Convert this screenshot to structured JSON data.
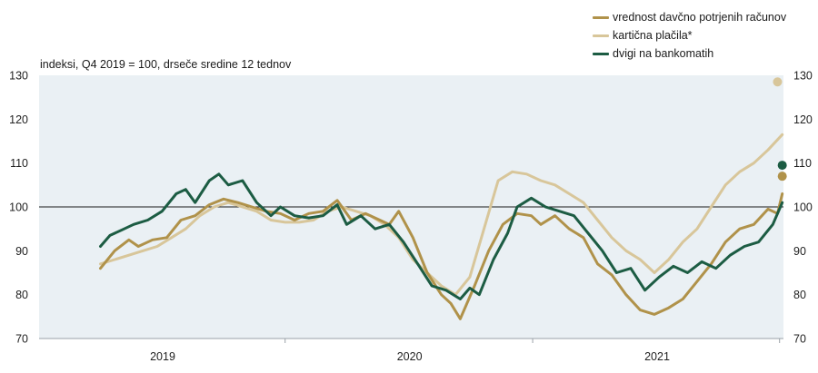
{
  "chart_data": {
    "type": "line",
    "subtitle": "indeksi, Q4 2019 = 100, drseče sredine 12 tednov",
    "x_axis": {
      "tick_labels": [
        "2019",
        "2020",
        "2021"
      ],
      "range": [
        "2018-07",
        "2021-07"
      ]
    },
    "y_axis": {
      "min": 70,
      "max": 130,
      "ticks": [
        70,
        80,
        90,
        100,
        110,
        120,
        130
      ],
      "grid": false,
      "reference_line": 100
    },
    "legend_position": "top-right",
    "series": [
      {
        "name": "vrednost davčno potrjenih računov",
        "color": "#b0924a",
        "values": [
          {
            "x": "2018-10-01",
            "y": 86
          },
          {
            "x": "2018-10-22",
            "y": 90
          },
          {
            "x": "2018-11-12",
            "y": 92.5
          },
          {
            "x": "2018-11-26",
            "y": 91
          },
          {
            "x": "2018-12-17",
            "y": 92.5
          },
          {
            "x": "2019-01-07",
            "y": 93
          },
          {
            "x": "2019-01-28",
            "y": 97
          },
          {
            "x": "2019-02-18",
            "y": 98
          },
          {
            "x": "2019-03-11",
            "y": 100.5
          },
          {
            "x": "2019-04-01",
            "y": 101.8
          },
          {
            "x": "2019-04-22",
            "y": 101
          },
          {
            "x": "2019-05-13",
            "y": 100
          },
          {
            "x": "2019-06-03",
            "y": 99
          },
          {
            "x": "2019-06-24",
            "y": 98.5
          },
          {
            "x": "2019-07-15",
            "y": 97
          },
          {
            "x": "2019-08-05",
            "y": 98.5
          },
          {
            "x": "2019-08-26",
            "y": 99
          },
          {
            "x": "2019-09-16",
            "y": 101.5
          },
          {
            "x": "2019-10-07",
            "y": 97
          },
          {
            "x": "2019-10-28",
            "y": 98.5
          },
          {
            "x": "2019-11-18",
            "y": 97
          },
          {
            "x": "2019-12-02",
            "y": 96
          },
          {
            "x": "2019-12-16",
            "y": 99
          },
          {
            "x": "2020-01-06",
            "y": 93
          },
          {
            "x": "2020-01-27",
            "y": 85
          },
          {
            "x": "2020-02-17",
            "y": 80
          },
          {
            "x": "2020-03-02",
            "y": 78
          },
          {
            "x": "2020-03-16",
            "y": 74.5
          },
          {
            "x": "2020-04-06",
            "y": 82
          },
          {
            "x": "2020-04-27",
            "y": 90
          },
          {
            "x": "2020-05-18",
            "y": 96
          },
          {
            "x": "2020-06-08",
            "y": 98.5
          },
          {
            "x": "2020-06-29",
            "y": 98
          },
          {
            "x": "2020-07-13",
            "y": 96
          },
          {
            "x": "2020-08-03",
            "y": 98
          },
          {
            "x": "2020-08-24",
            "y": 95
          },
          {
            "x": "2020-09-14",
            "y": 93
          },
          {
            "x": "2020-10-05",
            "y": 87
          },
          {
            "x": "2020-10-26",
            "y": 84.5
          },
          {
            "x": "2020-11-16",
            "y": 80
          },
          {
            "x": "2020-12-07",
            "y": 76.5
          },
          {
            "x": "2020-12-28",
            "y": 75.5
          },
          {
            "x": "2021-01-18",
            "y": 77
          },
          {
            "x": "2021-02-08",
            "y": 79
          },
          {
            "x": "2021-03-01",
            "y": 83
          },
          {
            "x": "2021-03-22",
            "y": 87
          },
          {
            "x": "2021-04-12",
            "y": 92
          },
          {
            "x": "2021-05-03",
            "y": 95
          },
          {
            "x": "2021-05-24",
            "y": 96
          },
          {
            "x": "2021-06-14",
            "y": 99.5
          },
          {
            "x": "2021-06-28",
            "y": 98.5
          },
          {
            "x": "2021-07-05",
            "y": 103
          }
        ],
        "marker": {
          "x": "2021-07-05",
          "y": 107
        }
      },
      {
        "name": "kartična plačila*",
        "color": "#d8c69a",
        "values": [
          {
            "x": "2018-10-01",
            "y": 87
          },
          {
            "x": "2018-10-22",
            "y": 88
          },
          {
            "x": "2018-11-12",
            "y": 89
          },
          {
            "x": "2018-12-03",
            "y": 90
          },
          {
            "x": "2018-12-24",
            "y": 91
          },
          {
            "x": "2019-01-14",
            "y": 93
          },
          {
            "x": "2019-02-04",
            "y": 95
          },
          {
            "x": "2019-02-25",
            "y": 98
          },
          {
            "x": "2019-03-18",
            "y": 100
          },
          {
            "x": "2019-04-08",
            "y": 101
          },
          {
            "x": "2019-04-29",
            "y": 100
          },
          {
            "x": "2019-05-20",
            "y": 99
          },
          {
            "x": "2019-06-10",
            "y": 97
          },
          {
            "x": "2019-07-01",
            "y": 96.5
          },
          {
            "x": "2019-07-22",
            "y": 96.5
          },
          {
            "x": "2019-08-12",
            "y": 97
          },
          {
            "x": "2019-09-02",
            "y": 99
          },
          {
            "x": "2019-09-23",
            "y": 100
          },
          {
            "x": "2019-10-14",
            "y": 99
          },
          {
            "x": "2019-11-04",
            "y": 98
          },
          {
            "x": "2019-11-25",
            "y": 96
          },
          {
            "x": "2019-12-16",
            "y": 93
          },
          {
            "x": "2020-01-06",
            "y": 88
          },
          {
            "x": "2020-01-27",
            "y": 85
          },
          {
            "x": "2020-02-17",
            "y": 82
          },
          {
            "x": "2020-03-09",
            "y": 80
          },
          {
            "x": "2020-03-30",
            "y": 84
          },
          {
            "x": "2020-04-20",
            "y": 95
          },
          {
            "x": "2020-05-11",
            "y": 106
          },
          {
            "x": "2020-06-01",
            "y": 108
          },
          {
            "x": "2020-06-22",
            "y": 107.5
          },
          {
            "x": "2020-07-13",
            "y": 106
          },
          {
            "x": "2020-08-03",
            "y": 105
          },
          {
            "x": "2020-08-24",
            "y": 103
          },
          {
            "x": "2020-09-14",
            "y": 101
          },
          {
            "x": "2020-10-05",
            "y": 97
          },
          {
            "x": "2020-10-26",
            "y": 93
          },
          {
            "x": "2020-11-16",
            "y": 90
          },
          {
            "x": "2020-12-07",
            "y": 88
          },
          {
            "x": "2020-12-28",
            "y": 85
          },
          {
            "x": "2021-01-18",
            "y": 88
          },
          {
            "x": "2021-02-08",
            "y": 92
          },
          {
            "x": "2021-03-01",
            "y": 95
          },
          {
            "x": "2021-03-22",
            "y": 100
          },
          {
            "x": "2021-04-12",
            "y": 105
          },
          {
            "x": "2021-05-03",
            "y": 108
          },
          {
            "x": "2021-05-24",
            "y": 110
          },
          {
            "x": "2021-06-14",
            "y": 113
          },
          {
            "x": "2021-07-05",
            "y": 116.5
          }
        ],
        "marker": {
          "x": "2021-06-28",
          "y": 128.5
        }
      },
      {
        "name": "dvigi na bankomatih",
        "color": "#1c5c43",
        "values": [
          {
            "x": "2018-10-01",
            "y": 91
          },
          {
            "x": "2018-10-15",
            "y": 93.5
          },
          {
            "x": "2018-11-05",
            "y": 95
          },
          {
            "x": "2018-11-19",
            "y": 96
          },
          {
            "x": "2018-12-10",
            "y": 97
          },
          {
            "x": "2018-12-31",
            "y": 99
          },
          {
            "x": "2019-01-21",
            "y": 103
          },
          {
            "x": "2019-02-04",
            "y": 104
          },
          {
            "x": "2019-02-18",
            "y": 101
          },
          {
            "x": "2019-03-11",
            "y": 106
          },
          {
            "x": "2019-03-25",
            "y": 107.5
          },
          {
            "x": "2019-04-08",
            "y": 105
          },
          {
            "x": "2019-04-29",
            "y": 106
          },
          {
            "x": "2019-05-20",
            "y": 101
          },
          {
            "x": "2019-06-10",
            "y": 98
          },
          {
            "x": "2019-06-24",
            "y": 100
          },
          {
            "x": "2019-07-15",
            "y": 98
          },
          {
            "x": "2019-08-05",
            "y": 97.5
          },
          {
            "x": "2019-08-26",
            "y": 98
          },
          {
            "x": "2019-09-16",
            "y": 100.5
          },
          {
            "x": "2019-09-30",
            "y": 96
          },
          {
            "x": "2019-10-21",
            "y": 98
          },
          {
            "x": "2019-11-11",
            "y": 95
          },
          {
            "x": "2019-12-02",
            "y": 96
          },
          {
            "x": "2019-12-23",
            "y": 92
          },
          {
            "x": "2020-01-13",
            "y": 87
          },
          {
            "x": "2020-02-03",
            "y": 82
          },
          {
            "x": "2020-02-24",
            "y": 81
          },
          {
            "x": "2020-03-16",
            "y": 79
          },
          {
            "x": "2020-03-30",
            "y": 81.5
          },
          {
            "x": "2020-04-13",
            "y": 80
          },
          {
            "x": "2020-05-04",
            "y": 88
          },
          {
            "x": "2020-05-25",
            "y": 94
          },
          {
            "x": "2020-06-08",
            "y": 100
          },
          {
            "x": "2020-06-29",
            "y": 102
          },
          {
            "x": "2020-07-20",
            "y": 100
          },
          {
            "x": "2020-08-10",
            "y": 99
          },
          {
            "x": "2020-08-31",
            "y": 98
          },
          {
            "x": "2020-09-21",
            "y": 94
          },
          {
            "x": "2020-10-12",
            "y": 90
          },
          {
            "x": "2020-11-02",
            "y": 85
          },
          {
            "x": "2020-11-23",
            "y": 86
          },
          {
            "x": "2020-12-14",
            "y": 81
          },
          {
            "x": "2021-01-04",
            "y": 84
          },
          {
            "x": "2021-01-25",
            "y": 86.5
          },
          {
            "x": "2021-02-15",
            "y": 85
          },
          {
            "x": "2021-03-08",
            "y": 87.5
          },
          {
            "x": "2021-03-29",
            "y": 86
          },
          {
            "x": "2021-04-19",
            "y": 89
          },
          {
            "x": "2021-05-10",
            "y": 91
          },
          {
            "x": "2021-05-31",
            "y": 92
          },
          {
            "x": "2021-06-21",
            "y": 96
          },
          {
            "x": "2021-07-05",
            "y": 101
          }
        ],
        "marker": {
          "x": "2021-07-05",
          "y": 109.5
        }
      }
    ]
  }
}
